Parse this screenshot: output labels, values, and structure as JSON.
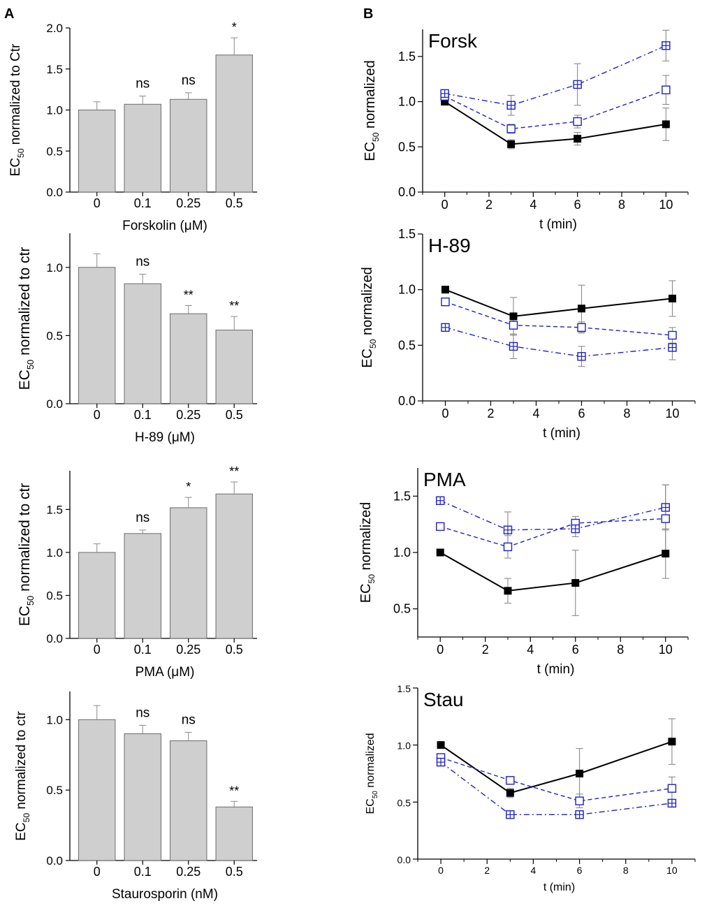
{
  "figure": {
    "panel_a_label": "A",
    "panel_b_label": "B"
  },
  "chart_data": [
    {
      "id": "a1",
      "type": "bar",
      "panel": "A",
      "categories": [
        "0",
        "0.1",
        "0.25",
        "0.5"
      ],
      "values": [
        1.0,
        1.07,
        1.13,
        1.67
      ],
      "errors": [
        0.1,
        0.1,
        0.08,
        0.21
      ],
      "annotations": [
        "",
        "ns",
        "ns",
        "*"
      ],
      "xlabel": "Forskolin (μM)",
      "ylabel": {
        "prefix": "EC",
        "sub": "50",
        "suffix": " normalized to Ctr"
      },
      "ylim": [
        0,
        2.0
      ],
      "yticks": [
        0.0,
        0.5,
        1.0,
        1.5,
        2.0
      ],
      "ytick_decimals": 1
    },
    {
      "id": "a2",
      "type": "bar",
      "panel": "A",
      "categories": [
        "0",
        "0.1",
        "0.25",
        "0.5"
      ],
      "values": [
        1.0,
        0.88,
        0.66,
        0.54
      ],
      "errors": [
        0.1,
        0.07,
        0.06,
        0.1
      ],
      "annotations": [
        "",
        "ns",
        "**",
        "**"
      ],
      "xlabel": "H-89 (μM)",
      "ylabel": {
        "prefix": "EC",
        "sub": "50",
        "suffix": " normalized to ctr"
      },
      "ylim": [
        0,
        1.25
      ],
      "yticks": [
        0.0,
        0.5,
        1.0
      ],
      "ytick_decimals": 1
    },
    {
      "id": "a3",
      "type": "bar",
      "panel": "A",
      "categories": [
        "0",
        "0.1",
        "0.25",
        "0.5"
      ],
      "values": [
        1.0,
        1.22,
        1.52,
        1.68
      ],
      "errors": [
        0.1,
        0.04,
        0.12,
        0.14
      ],
      "annotations": [
        "",
        "ns",
        "*",
        "**"
      ],
      "xlabel": "PMA (μM)",
      "ylabel": {
        "prefix": "EC",
        "sub": "50",
        "suffix": " normalized to ctr"
      },
      "ylim": [
        0,
        1.95
      ],
      "yticks": [
        0.0,
        0.5,
        1.0,
        1.5
      ],
      "ytick_decimals": 1
    },
    {
      "id": "a4",
      "type": "bar",
      "panel": "A",
      "categories": [
        "0",
        "0.1",
        "0.25",
        "0.5"
      ],
      "values": [
        1.0,
        0.9,
        0.85,
        0.38
      ],
      "errors": [
        0.1,
        0.06,
        0.06,
        0.04
      ],
      "annotations": [
        "",
        "ns",
        "ns",
        "**"
      ],
      "xlabel": "Staurosporin (nM)",
      "ylabel": {
        "prefix": "EC",
        "sub": "50",
        "suffix": " normalized to ctr"
      },
      "ylim": [
        0,
        1.2
      ],
      "yticks": [
        0.0,
        0.5,
        1.0
      ],
      "ytick_decimals": 1
    },
    {
      "id": "b1",
      "type": "line",
      "panel": "B",
      "title": "Forsk",
      "x": [
        0,
        3,
        6,
        10
      ],
      "xlabel": "t (min)",
      "ylabel": {
        "prefix": "EC",
        "sub": "50",
        "suffix": " normalized"
      },
      "xlim": [
        -1,
        11
      ],
      "xticks": [
        0,
        2,
        4,
        6,
        8,
        10
      ],
      "ylim": [
        0,
        1.8
      ],
      "yticks": [
        0.0,
        0.5,
        1.0,
        1.5
      ],
      "ytick_decimals": 1,
      "series": [
        {
          "name": "solid-filled",
          "style": "solid",
          "marker": "filled-square",
          "color": "#000000",
          "values": [
            1.0,
            0.53,
            0.59,
            0.75
          ],
          "errors": [
            0.03,
            0.05,
            0.07,
            0.18
          ]
        },
        {
          "name": "dashed-open",
          "style": "dashed",
          "marker": "open-square",
          "color": "#1f1fc8",
          "values": [
            1.06,
            0.7,
            0.78,
            1.13
          ],
          "errors": [
            0.04,
            0.05,
            0.07,
            0.16
          ]
        },
        {
          "name": "dashdot-crossed",
          "style": "dashdot",
          "marker": "crossed-square",
          "color": "#1f1fc8",
          "values": [
            1.09,
            0.96,
            1.19,
            1.62
          ],
          "errors": [
            0.04,
            0.11,
            0.23,
            0.17
          ]
        }
      ]
    },
    {
      "id": "b2",
      "type": "line",
      "panel": "B",
      "title": "H-89",
      "x": [
        0,
        3,
        6,
        10
      ],
      "xlabel": "t (min)",
      "ylabel": {
        "prefix": "EC",
        "sub": "50",
        "suffix": " normalized"
      },
      "xlim": [
        -1,
        11
      ],
      "xticks": [
        0,
        2,
        4,
        6,
        8,
        10
      ],
      "ylim": [
        0,
        1.5
      ],
      "yticks": [
        0.0,
        0.5,
        1.0,
        1.5
      ],
      "ytick_decimals": 1,
      "series": [
        {
          "name": "solid-filled",
          "style": "solid",
          "marker": "filled-square",
          "color": "#000000",
          "values": [
            1.0,
            0.76,
            0.83,
            0.92
          ],
          "errors": [
            0.02,
            0.17,
            0.21,
            0.16
          ]
        },
        {
          "name": "dashed-open",
          "style": "dashed",
          "marker": "open-square",
          "color": "#1f1fc8",
          "values": [
            0.89,
            0.68,
            0.66,
            0.59
          ],
          "errors": [
            0.02,
            0.08,
            0.05,
            0.07
          ]
        },
        {
          "name": "dashdot-crossed",
          "style": "dashdot",
          "marker": "crossed-square",
          "color": "#1f1fc8",
          "values": [
            0.66,
            0.49,
            0.4,
            0.48
          ],
          "errors": [
            0.02,
            0.11,
            0.09,
            0.11
          ]
        }
      ]
    },
    {
      "id": "b3",
      "type": "line",
      "panel": "B",
      "title": "PMA",
      "x": [
        0,
        3,
        6,
        10
      ],
      "xlabel": "t (min)",
      "ylabel": {
        "prefix": "EC",
        "sub": "50",
        "suffix": " normalized"
      },
      "xlim": [
        -1,
        11
      ],
      "xticks": [
        0,
        2,
        4,
        6,
        8,
        10
      ],
      "ylim": [
        0.25,
        1.75
      ],
      "yticks": [
        0.5,
        1.0,
        1.5
      ],
      "ytick_decimals": 1,
      "series": [
        {
          "name": "solid-filled",
          "style": "solid",
          "marker": "filled-square",
          "color": "#000000",
          "values": [
            1.0,
            0.66,
            0.73,
            0.99
          ],
          "errors": [
            0.02,
            0.11,
            0.29,
            0.22
          ]
        },
        {
          "name": "dashed-open",
          "style": "dashed",
          "marker": "open-square",
          "color": "#1f1fc8",
          "values": [
            1.23,
            1.05,
            1.26,
            1.3
          ],
          "errors": [
            0.02,
            0.1,
            0.06,
            0.3
          ]
        },
        {
          "name": "dashdot-crossed",
          "style": "dashdot",
          "marker": "crossed-square",
          "color": "#1f1fc8",
          "values": [
            1.46,
            1.2,
            1.21,
            1.4
          ],
          "errors": [
            0.02,
            0.16,
            0.07,
            0.2
          ]
        }
      ]
    },
    {
      "id": "b4",
      "type": "line",
      "panel": "B",
      "title": "Stau",
      "x": [
        0,
        3,
        6,
        10
      ],
      "xlabel": "t (min)",
      "ylabel": {
        "prefix": "EC",
        "sub": "50",
        "suffix": " normalized"
      },
      "xlim": [
        -1,
        11
      ],
      "xticks": [
        0,
        2,
        4,
        6,
        8,
        10
      ],
      "ylim": [
        0,
        1.5
      ],
      "yticks": [
        0.0,
        0.5,
        1.0,
        1.5
      ],
      "ytick_decimals": 1,
      "series": [
        {
          "name": "solid-filled",
          "style": "solid",
          "marker": "filled-square",
          "color": "#000000",
          "values": [
            1.0,
            0.58,
            0.75,
            1.03
          ],
          "errors": [
            0.02,
            0.04,
            0.22,
            0.2
          ]
        },
        {
          "name": "dashed-open",
          "style": "dashed",
          "marker": "open-square",
          "color": "#1f1fc8",
          "values": [
            0.89,
            0.69,
            0.51,
            0.62
          ],
          "errors": [
            0.02,
            0.03,
            0.06,
            0.1
          ]
        },
        {
          "name": "dashdot-crossed",
          "style": "dashdot",
          "marker": "crossed-square",
          "color": "#1f1fc8",
          "values": [
            0.85,
            0.39,
            0.39,
            0.49
          ],
          "errors": [
            0.02,
            0.03,
            0.02,
            0.03
          ]
        }
      ]
    }
  ]
}
